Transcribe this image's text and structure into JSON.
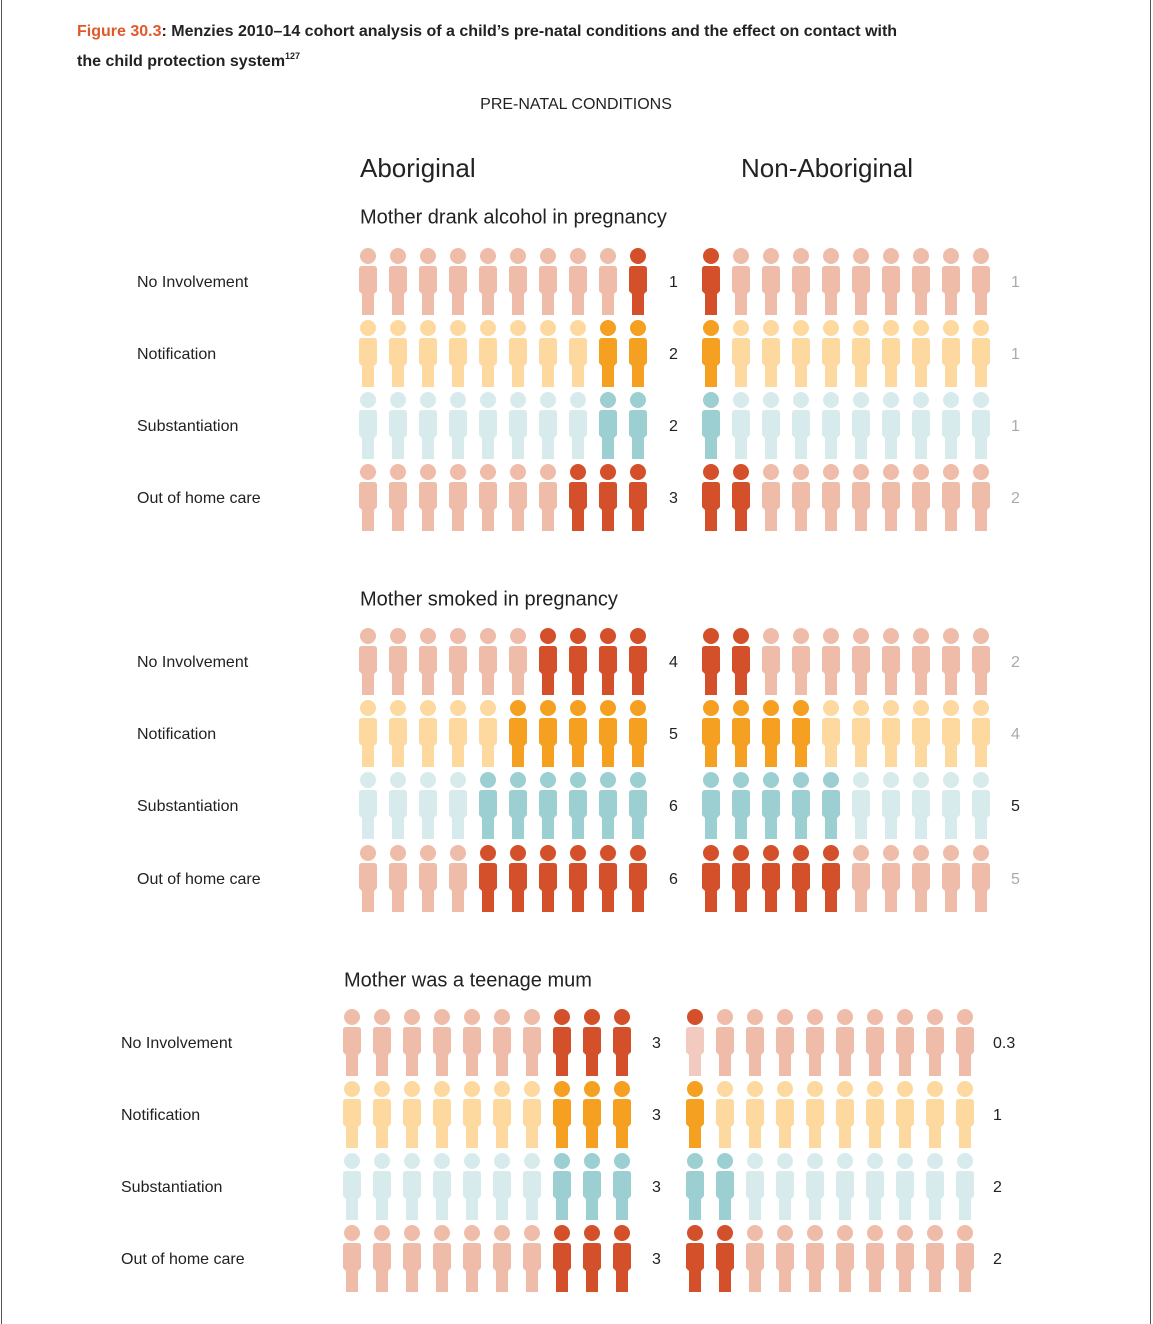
{
  "chart_data": {
    "type": "pictogram",
    "figure_label": "Figure 30.3",
    "title_lines": [
      ": Menzies 2010–14 cohort analysis of a child’s pre-natal conditions and the effect on contact with",
      "the child protection system"
    ],
    "footnote": "127",
    "subtitle": "PRE-NATAL CONDITIONS",
    "groups": [
      "Aboriginal",
      "Non-Aboriginal"
    ],
    "icons_per_row": 10,
    "category_colors": [
      [
        "#efbcaa",
        "#d4502a"
      ],
      [
        "#fdd9a0",
        "#f5a021"
      ],
      [
        "#d8ebec",
        "#9ccfd2"
      ],
      [
        "#efbcaa",
        "#d4502a"
      ]
    ],
    "panels": [
      {
        "title": "Mother drank alcohol in pregnancy",
        "categories": [
          "No Involvement",
          "Notification",
          "Substantiation",
          "Out of home care"
        ],
        "series": [
          {
            "name": "Aboriginal",
            "fill_from": "right",
            "values": [
              1,
              2,
              2,
              3
            ],
            "label_colors": [
              "#222222",
              "#222222",
              "#222222",
              "#222222"
            ]
          },
          {
            "name": "Non-Aboriginal",
            "fill_from": "left",
            "values": [
              1,
              1,
              1,
              2
            ],
            "label_colors": [
              "#aaaaaa",
              "#aaaaaa",
              "#aaaaaa",
              "#aaaaaa"
            ]
          }
        ]
      },
      {
        "title": "Mother smoked in pregnancy",
        "categories": [
          "No Involvement",
          "Notification",
          "Substantiation",
          "Out of home care"
        ],
        "series": [
          {
            "name": "Aboriginal",
            "fill_from": "right",
            "values": [
              4,
              5,
              6,
              6
            ],
            "label_colors": [
              "#222222",
              "#222222",
              "#222222",
              "#222222"
            ]
          },
          {
            "name": "Non-Aboriginal",
            "fill_from": "left",
            "values": [
              2,
              4,
              5,
              5
            ],
            "label_colors": [
              "#aaaaaa",
              "#aaaaaa",
              "#222222",
              "#aaaaaa"
            ]
          }
        ]
      },
      {
        "title": "Mother was a teenage mum",
        "categories": [
          "No Involvement",
          "Notification",
          "Substantiation",
          "Out of home care"
        ],
        "series": [
          {
            "name": "Aboriginal",
            "fill_from": "right",
            "values": [
              3,
              3,
              3,
              3
            ],
            "label_colors": [
              "#222222",
              "#222222",
              "#222222",
              "#222222"
            ]
          },
          {
            "name": "Non-Aboriginal",
            "fill_from": "left",
            "values": [
              0.3,
              1,
              2,
              2
            ],
            "label_colors": [
              "#222222",
              "#222222",
              "#222222",
              "#222222"
            ]
          }
        ]
      }
    ]
  }
}
